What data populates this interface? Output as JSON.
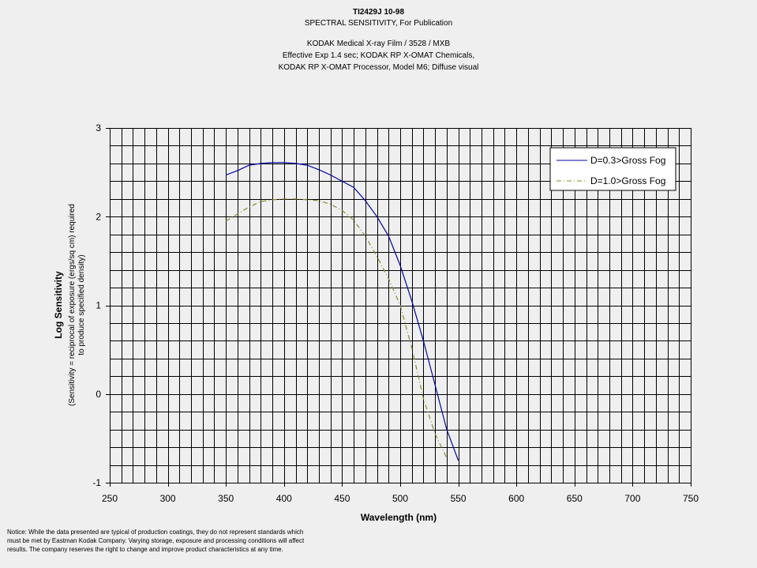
{
  "header": {
    "id_line": "TI2429J 10-98",
    "subtitle": "SPECTRAL SENSITIVITY, For Publication",
    "desc_line1": "KODAK Medical X-ray Film / 3528 / MXB",
    "desc_line2": "Effective Exp 1.4 sec; KODAK RP X-OMAT Chemicals,",
    "desc_line3": "KODAK RP X-OMAT Processor, Model M6; Diffuse visual"
  },
  "notice": {
    "line1": "Notice: While the data presented are typical of production coatings, they do not represent standards which",
    "line2": "must be met by Eastman Kodak Company.  Varying storage, exposure and processing conditions will affect",
    "line3": "results.  The company reserves the right to change and improve product characteristics at any time."
  },
  "chart_data": {
    "type": "line",
    "title": "SPECTRAL SENSITIVITY, For Publication",
    "xlabel": "Wavelength (nm)",
    "ylabel": "Log Sensitivity",
    "ylabel_note_line1": "(Sensitivity = reciprocal of exposure (ergs/sq cm) required",
    "ylabel_note_line2": "to produce specified density)",
    "xlim": [
      250,
      750
    ],
    "ylim": [
      -1,
      3
    ],
    "x_ticks": [
      "250",
      "300",
      "350",
      "400",
      "450",
      "500",
      "550",
      "600",
      "650",
      "700",
      "750"
    ],
    "y_ticks": [
      "-1",
      "0",
      "1",
      "2",
      "3"
    ],
    "x_minor_step": 10,
    "y_minor_step": 0.2,
    "grid": true,
    "legend_position": "top-right",
    "series": [
      {
        "name": "D=0.3>Gross Fog",
        "color": "#0000aa",
        "style": "solid",
        "x": [
          350,
          360,
          370,
          380,
          390,
          400,
          410,
          420,
          430,
          440,
          450,
          460,
          470,
          480,
          490,
          500,
          510,
          520,
          530,
          540,
          550
        ],
        "y": [
          2.47,
          2.52,
          2.58,
          2.6,
          2.61,
          2.61,
          2.6,
          2.58,
          2.53,
          2.47,
          2.4,
          2.33,
          2.18,
          2.0,
          1.78,
          1.45,
          1.05,
          0.6,
          0.1,
          -0.4,
          -0.75
        ]
      },
      {
        "name": "D=1.0>Gross Fog",
        "color": "#8c8a2a",
        "style": "dashdot",
        "x": [
          350,
          360,
          370,
          380,
          390,
          400,
          410,
          420,
          430,
          440,
          450,
          460,
          470,
          480,
          490,
          500,
          510,
          520,
          530,
          540
        ],
        "y": [
          1.95,
          2.03,
          2.11,
          2.17,
          2.19,
          2.2,
          2.2,
          2.19,
          2.18,
          2.14,
          2.07,
          1.96,
          1.78,
          1.55,
          1.3,
          1.0,
          0.52,
          -0.05,
          -0.45,
          -0.72
        ]
      }
    ]
  }
}
